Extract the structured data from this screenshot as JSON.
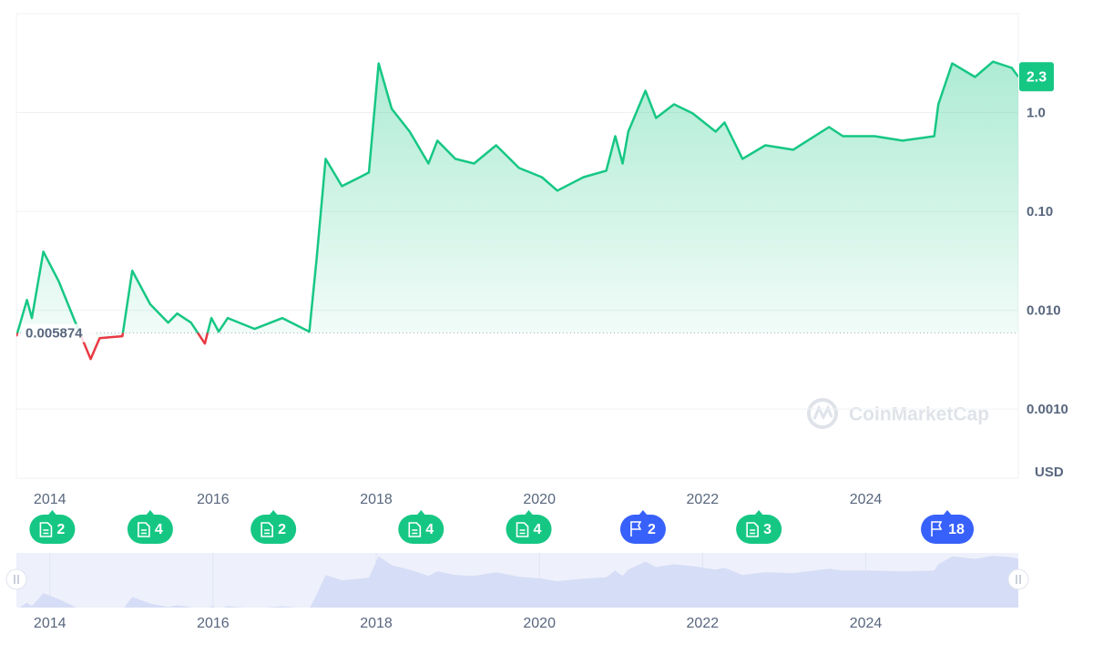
{
  "chart_data": {
    "type": "line",
    "y_axis_label": "USD",
    "watermark": "CoinMarketCap",
    "log_y": true,
    "grid": true,
    "color": "#16c784",
    "below_color": "#ea3943",
    "baseline": {
      "value": 0.005874,
      "label": "0.005874"
    },
    "current_price": {
      "value": 2.3,
      "label": "2.3"
    },
    "xlim": [
      2013.59,
      2025.87
    ],
    "xticks": [
      2014,
      2016,
      2018,
      2020,
      2022,
      2024
    ],
    "ylim": [
      0.0002,
      10
    ],
    "yticks": [
      {
        "value": 1,
        "label": "1.0"
      },
      {
        "value": 0.1,
        "label": "0.10"
      },
      {
        "value": 0.01,
        "label": "0.010"
      },
      {
        "value": 0.001,
        "label": "0.0010"
      }
    ],
    "x": [
      2013.59,
      2013.72,
      2013.78,
      2013.92,
      2014.11,
      2014.3,
      2014.5,
      2014.61,
      2014.89,
      2015.01,
      2015.23,
      2015.45,
      2015.56,
      2015.73,
      2015.9,
      2015.98,
      2016.07,
      2016.18,
      2016.51,
      2016.85,
      2017.18,
      2017.27,
      2017.38,
      2017.58,
      2017.8,
      2017.91,
      2018.03,
      2018.19,
      2018.41,
      2018.64,
      2018.75,
      2018.97,
      2019.2,
      2019.47,
      2019.75,
      2020.03,
      2020.22,
      2020.54,
      2020.82,
      2020.93,
      2021.02,
      2021.09,
      2021.3,
      2021.43,
      2021.65,
      2021.88,
      2022.16,
      2022.27,
      2022.49,
      2022.77,
      2023.11,
      2023.55,
      2023.72,
      2024.11,
      2024.45,
      2024.84,
      2024.89,
      2025.06,
      2025.34,
      2025.56,
      2025.79,
      2025.87
    ],
    "values": [
      0.00546,
      0.0127,
      0.00834,
      0.0391,
      0.0195,
      0.008,
      0.00321,
      0.00523,
      0.00546,
      0.0251,
      0.0115,
      0.0075,
      0.00927,
      0.0075,
      0.0046,
      0.00834,
      0.00607,
      0.00834,
      0.00647,
      0.00834,
      0.00607,
      0.033,
      0.34,
      0.18,
      0.222,
      0.247,
      3.14,
      1.09,
      0.641,
      0.305,
      0.519,
      0.34,
      0.305,
      0.466,
      0.275,
      0.222,
      0.162,
      0.222,
      0.258,
      0.577,
      0.305,
      0.641,
      1.66,
      0.881,
      1.21,
      0.98,
      0.641,
      0.792,
      0.34,
      0.466,
      0.42,
      0.713,
      0.577,
      0.577,
      0.519,
      0.577,
      1.21,
      3.14,
      2.29,
      3.27,
      2.83,
      2.3
    ],
    "events": [
      {
        "x": 2014.03,
        "count": 2,
        "kind": "doc"
      },
      {
        "x": 2015.23,
        "count": 4,
        "kind": "doc"
      },
      {
        "x": 2016.74,
        "count": 2,
        "kind": "doc"
      },
      {
        "x": 2018.55,
        "count": 4,
        "kind": "doc"
      },
      {
        "x": 2019.87,
        "count": 4,
        "kind": "doc"
      },
      {
        "x": 2021.27,
        "count": 2,
        "kind": "flag"
      },
      {
        "x": 2022.69,
        "count": 3,
        "kind": "doc"
      },
      {
        "x": 2025.0,
        "count": 18,
        "kind": "flag"
      }
    ]
  }
}
